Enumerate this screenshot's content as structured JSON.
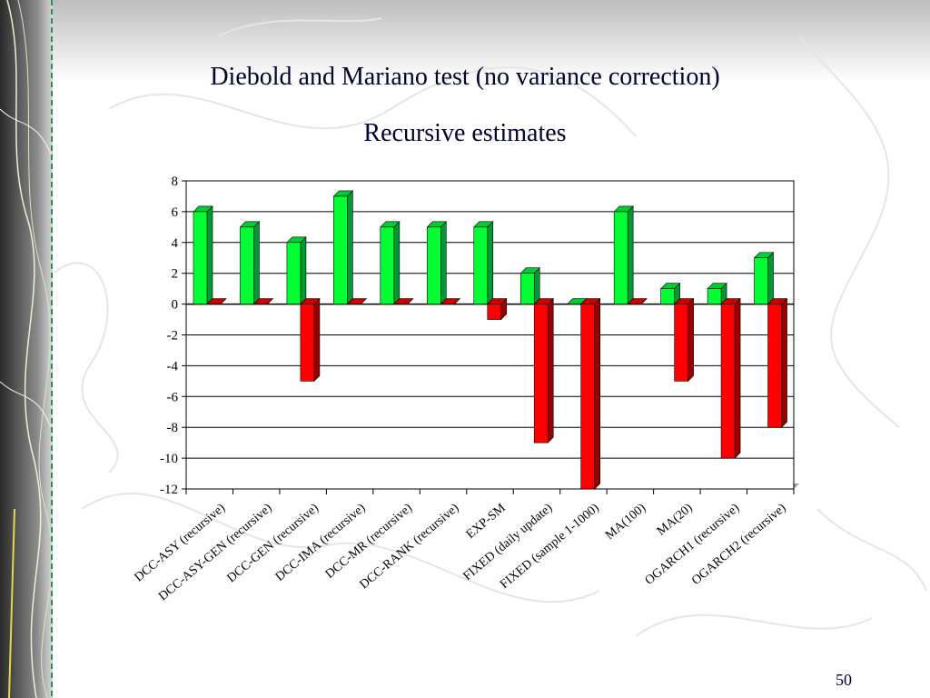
{
  "slide": {
    "title": "Diebold and Mariano test (no variance correction)",
    "page_number": "50"
  },
  "theme": {
    "positive_color": "#00ff33",
    "negative_color": "#ff0000",
    "side_texture": "topographic-map"
  },
  "chart_data": {
    "type": "bar",
    "title": "Recursive estimates",
    "xlabel": "",
    "ylabel": "",
    "ylim": [
      -12,
      8
    ],
    "yticks": [
      8,
      6,
      4,
      2,
      0,
      -2,
      -4,
      -6,
      -8,
      -10,
      -12
    ],
    "grid": true,
    "legend": "none",
    "categories": [
      "DCC-ASY (recursive)",
      "DCC-ASY-GEN (recursive)",
      "DCC-GEN (recursive)",
      "DCC-IMA (recursive)",
      "DCC-MR (recursive)",
      "DCC-RANK (recursive)",
      "EXP-SM",
      "FIXED (daily update)",
      "FIXED (sample 1-1000)",
      "MA(100)",
      "MA(20)",
      "OGARCH1 (recursive)",
      "OGARCH2 (recursive)"
    ],
    "series": [
      {
        "values": [
          6,
          5,
          4,
          7,
          5,
          5,
          5,
          2,
          0,
          6,
          1,
          1,
          3
        ],
        "color": "#00ff33"
      },
      {
        "values": [
          0,
          0,
          -5,
          0,
          0,
          0,
          -1,
          -9,
          -12,
          0,
          -5,
          -10,
          -8
        ],
        "color": "#ff0000"
      }
    ]
  }
}
